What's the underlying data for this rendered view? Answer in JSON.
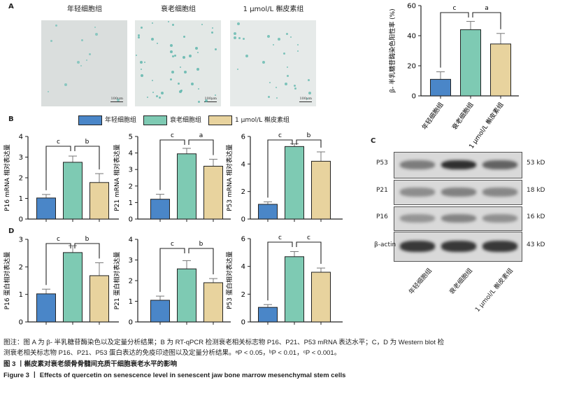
{
  "groups": [
    "年轻细胞组",
    "衰老细胞组",
    "1 μmol/L 槲皮素组"
  ],
  "colors": {
    "young": "#4a86c8",
    "senescent": "#7ecab3",
    "quercetin": "#e8d39e"
  },
  "panel_labels": {
    "a": "A",
    "b": "B",
    "c": "C",
    "d": "D"
  },
  "micrographs": {
    "scale_bar": "100μm"
  },
  "legend": [
    "年轻细胞组",
    "衰老细胞组",
    "1 μmol/L 槲皮素组"
  ],
  "chart_data": [
    {
      "id": "A",
      "type": "bar",
      "ylabel": "β- 半乳糖苷酶染色阳性率 (%)",
      "ylim": [
        0,
        60
      ],
      "yticks": [
        0,
        20,
        40,
        60
      ],
      "categories": [
        "年轻细胞组",
        "衰老细胞组",
        "1 μmol/L 槲皮素组"
      ],
      "values": [
        11,
        44,
        34.5
      ],
      "errors": [
        5,
        5.5,
        7
      ],
      "significance": [
        {
          "pair": [
            0,
            1
          ],
          "label": "c"
        },
        {
          "pair": [
            1,
            2
          ],
          "label": "a"
        }
      ]
    },
    {
      "id": "B1",
      "type": "bar",
      "ylabel": "P16 mRNA 相对表达量",
      "ylim": [
        0,
        4
      ],
      "yticks": [
        0,
        1,
        2,
        3,
        4
      ],
      "values": [
        1.02,
        2.75,
        1.77
      ],
      "errors": [
        0.17,
        0.3,
        0.43
      ],
      "significance": [
        {
          "pair": [
            0,
            1
          ],
          "label": "c"
        },
        {
          "pair": [
            1,
            2
          ],
          "label": "b"
        }
      ]
    },
    {
      "id": "B2",
      "type": "bar",
      "ylabel": "P21 mRNA 相对表达量",
      "ylim": [
        0,
        5
      ],
      "yticks": [
        0,
        1,
        2,
        3,
        4,
        5
      ],
      "values": [
        1.2,
        3.95,
        3.2
      ],
      "errors": [
        0.3,
        0.33,
        0.42
      ],
      "significance": [
        {
          "pair": [
            0,
            1
          ],
          "label": "c"
        },
        {
          "pair": [
            1,
            2
          ],
          "label": "a"
        }
      ]
    },
    {
      "id": "B3",
      "type": "bar",
      "ylabel": "P53 mRNA 相对表达量",
      "ylim": [
        0,
        6
      ],
      "yticks": [
        0,
        2,
        4,
        6
      ],
      "values": [
        1.07,
        5.27,
        4.2
      ],
      "errors": [
        0.18,
        0.2,
        0.68
      ],
      "significance": [
        {
          "pair": [
            0,
            1
          ],
          "label": "c"
        },
        {
          "pair": [
            1,
            2
          ],
          "label": "b"
        }
      ]
    },
    {
      "id": "D1",
      "type": "bar",
      "ylabel": "P16 蛋白相对表达量",
      "ylim": [
        0,
        3
      ],
      "yticks": [
        0,
        1,
        2,
        3
      ],
      "values": [
        1.02,
        2.52,
        1.68
      ],
      "errors": [
        0.17,
        0.25,
        0.47
      ],
      "significance": [
        {
          "pair": [
            0,
            1
          ],
          "label": "c"
        },
        {
          "pair": [
            1,
            2
          ],
          "label": "b"
        }
      ]
    },
    {
      "id": "D2",
      "type": "bar",
      "ylabel": "P21 蛋白相对表达量",
      "ylim": [
        0,
        4
      ],
      "yticks": [
        0,
        1,
        2,
        3,
        4
      ],
      "values": [
        1.05,
        2.57,
        1.9
      ],
      "errors": [
        0.2,
        0.4,
        0.2
      ],
      "significance": [
        {
          "pair": [
            0,
            1
          ],
          "label": "c"
        },
        {
          "pair": [
            1,
            2
          ],
          "label": "b"
        }
      ]
    },
    {
      "id": "D3",
      "type": "bar",
      "ylabel": "P53 蛋白相对表达量",
      "ylim": [
        0,
        6
      ],
      "yticks": [
        0,
        2,
        4,
        6
      ],
      "values": [
        1.05,
        4.7,
        3.58
      ],
      "errors": [
        0.2,
        0.37,
        0.3
      ],
      "significance": [
        {
          "pair": [
            0,
            1
          ],
          "label": "c"
        },
        {
          "pair": [
            1,
            2
          ],
          "label": "c"
        }
      ]
    }
  ],
  "western_blot": {
    "rows": [
      {
        "protein": "P53",
        "size": "53 kD",
        "intensity": [
          0.45,
          0.9,
          0.6
        ]
      },
      {
        "protein": "P21",
        "size": "18 kD",
        "intensity": [
          0.35,
          0.42,
          0.38
        ]
      },
      {
        "protein": "P16",
        "size": "16 kD",
        "intensity": [
          0.3,
          0.4,
          0.33
        ]
      },
      {
        "protein": "β-actin",
        "size": "43 kD",
        "intensity": [
          0.85,
          0.85,
          0.85
        ]
      }
    ],
    "lanes": [
      "年轻细胞组",
      "衰老细胞组",
      "1 μmol/L 槲皮素组"
    ]
  },
  "caption": {
    "note_line1": "图注：图 A 为 β- 半乳糖苷酶染色以及定量分析结果；B 为 RT-qPCR 检测衰老相关标志物 P16、P21、P53 mRNA 表达水平；C，D 为 Western blot 检",
    "note_line2": "测衰老相关标志物 P16、P21、P53 蛋白表达的免疫印迹图以及定量分析结果。ᵃP < 0.05，ᵇP < 0.01，ᶜP < 0.001。",
    "title_cn": "图 3 丨槲皮素对衰老颌骨骨髓间充质干细胞衰老水平的影响",
    "title_en": "Figure 3 丨 Effects of quercetin on senescence level in senescent jaw bone marrow mesenchymal stem cells"
  }
}
